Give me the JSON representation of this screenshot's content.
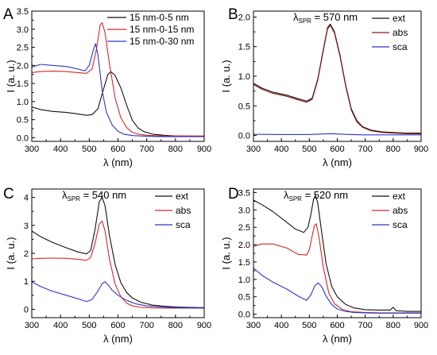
{
  "figure": {
    "panels": [
      "A",
      "B",
      "C",
      "D"
    ]
  },
  "colors": {
    "black": "#111111",
    "red": "#d62728",
    "blue": "#2e35c8",
    "darkred": "#8b1a1a"
  },
  "chart_data": [
    {
      "panel": "A",
      "type": "line",
      "title": "",
      "xlabel": "λ  (nm)",
      "ylabel": "I (a. u.)",
      "xlim": [
        300,
        900
      ],
      "ylim": [
        -0.1,
        3.5
      ],
      "xticks": [
        300,
        400,
        500,
        600,
        700,
        800,
        900
      ],
      "yticks": [
        0.0,
        0.5,
        1.0,
        1.5,
        2.0,
        2.5,
        3.0,
        3.5
      ],
      "ytick_labels": [
        "0.0",
        "0.5",
        "1.0",
        "1.5",
        "2.0",
        "2.5",
        "3.0",
        "3.5"
      ],
      "legend": "top-right",
      "annotation": "",
      "series": [
        {
          "name": "15 nm-0-5 nm",
          "color": "black",
          "x": [
            300,
            330,
            370,
            420,
            460,
            490,
            510,
            530,
            550,
            565,
            575,
            590,
            610,
            630,
            650,
            670,
            690,
            720,
            760,
            800,
            850,
            900
          ],
          "y": [
            0.85,
            0.78,
            0.73,
            0.7,
            0.66,
            0.62,
            0.64,
            0.8,
            1.35,
            1.75,
            1.83,
            1.72,
            1.38,
            0.9,
            0.48,
            0.27,
            0.17,
            0.1,
            0.07,
            0.05,
            0.04,
            0.04
          ]
        },
        {
          "name": "15 nm-0-15 nm",
          "color": "red",
          "x": [
            300,
            330,
            370,
            420,
            460,
            490,
            510,
            525,
            538,
            545,
            555,
            570,
            590,
            610,
            630,
            650,
            670,
            700,
            750,
            800,
            850,
            900
          ],
          "y": [
            1.8,
            1.83,
            1.84,
            1.83,
            1.8,
            1.78,
            1.9,
            2.45,
            3.12,
            3.18,
            2.9,
            2.05,
            1.1,
            0.55,
            0.28,
            0.15,
            0.1,
            0.07,
            0.05,
            0.05,
            0.05,
            0.05
          ]
        },
        {
          "name": "15 nm-0-30 nm",
          "color": "blue",
          "x": [
            300,
            330,
            370,
            420,
            460,
            485,
            500,
            515,
            522,
            530,
            545,
            560,
            580,
            600,
            620,
            650,
            700,
            750,
            800,
            850,
            900
          ],
          "y": [
            1.95,
            2.03,
            2.0,
            1.97,
            1.9,
            1.85,
            2.0,
            2.45,
            2.6,
            2.3,
            1.3,
            0.7,
            0.35,
            0.18,
            0.1,
            0.06,
            0.04,
            0.03,
            0.03,
            0.03,
            0.03
          ]
        }
      ]
    },
    {
      "panel": "B",
      "type": "line",
      "title": "",
      "xlabel": "λ  (nm)",
      "ylabel": "I (a. u.)",
      "xlim": [
        300,
        900
      ],
      "ylim": [
        -0.1,
        2.1
      ],
      "xticks": [
        300,
        400,
        500,
        600,
        700,
        800,
        900
      ],
      "yticks": [
        0.0,
        0.5,
        1.0,
        1.5,
        2.0
      ],
      "ytick_labels": [
        "0.0",
        "0.5",
        "1.0",
        "1.5",
        "2.0"
      ],
      "legend": "top-right",
      "annotation": {
        "symbol": "λ",
        "subscript": "SPR",
        "text": " = 570 nm"
      },
      "series": [
        {
          "name": "ext",
          "color": "black",
          "x": [
            300,
            330,
            370,
            420,
            460,
            490,
            510,
            530,
            550,
            565,
            575,
            590,
            610,
            630,
            650,
            670,
            690,
            720,
            760,
            800,
            850,
            900
          ],
          "y": [
            0.88,
            0.8,
            0.73,
            0.68,
            0.62,
            0.58,
            0.63,
            0.95,
            1.45,
            1.82,
            1.88,
            1.75,
            1.35,
            0.85,
            0.45,
            0.25,
            0.15,
            0.09,
            0.06,
            0.05,
            0.04,
            0.04
          ]
        },
        {
          "name": "abs",
          "color": "darkred",
          "x": [
            300,
            330,
            370,
            420,
            460,
            490,
            510,
            530,
            550,
            565,
            575,
            590,
            610,
            630,
            650,
            670,
            690,
            720,
            760,
            800,
            850,
            900
          ],
          "y": [
            0.86,
            0.78,
            0.71,
            0.66,
            0.6,
            0.56,
            0.61,
            0.93,
            1.43,
            1.8,
            1.86,
            1.73,
            1.33,
            0.83,
            0.43,
            0.23,
            0.14,
            0.08,
            0.05,
            0.04,
            0.03,
            0.03
          ]
        },
        {
          "name": "sca",
          "color": "blue",
          "x": [
            300,
            400,
            500,
            550,
            575,
            600,
            650,
            700,
            800,
            900
          ],
          "y": [
            0.02,
            0.015,
            0.015,
            0.025,
            0.03,
            0.025,
            0.015,
            0.01,
            0.01,
            0.01
          ]
        }
      ]
    },
    {
      "panel": "C",
      "type": "line",
      "title": "",
      "xlabel": "λ  (nm)",
      "ylabel": "I (a. u.)",
      "xlim": [
        300,
        900
      ],
      "ylim": [
        -0.3,
        4.3
      ],
      "xticks": [
        300,
        400,
        500,
        600,
        700,
        800,
        900
      ],
      "yticks": [
        0,
        1,
        2,
        3,
        4
      ],
      "ytick_labels": [
        "0",
        "1",
        "2",
        "3",
        "4"
      ],
      "legend": "top-right",
      "annotation": {
        "symbol": "λ",
        "subscript": "SPR",
        "text": " = 540 nm"
      },
      "series": [
        {
          "name": "ext",
          "color": "black",
          "x": [
            300,
            330,
            370,
            420,
            460,
            490,
            505,
            520,
            535,
            545,
            555,
            570,
            590,
            610,
            630,
            650,
            680,
            720,
            760,
            800,
            850,
            900
          ],
          "y": [
            2.8,
            2.6,
            2.4,
            2.2,
            2.05,
            1.98,
            2.1,
            2.85,
            3.85,
            4.0,
            3.7,
            2.65,
            1.6,
            0.95,
            0.6,
            0.4,
            0.25,
            0.15,
            0.11,
            0.08,
            0.07,
            0.06
          ]
        },
        {
          "name": "abs",
          "color": "red",
          "x": [
            300,
            330,
            370,
            420,
            460,
            490,
            505,
            520,
            535,
            545,
            555,
            570,
            590,
            610,
            630,
            650,
            680,
            720,
            760,
            800,
            850,
            900
          ],
          "y": [
            1.8,
            1.82,
            1.83,
            1.82,
            1.79,
            1.75,
            1.85,
            2.35,
            3.05,
            3.15,
            2.8,
            1.8,
            0.9,
            0.45,
            0.22,
            0.12,
            0.07,
            0.05,
            0.04,
            0.04,
            0.04,
            0.04
          ]
        },
        {
          "name": "sca",
          "color": "blue",
          "x": [
            300,
            330,
            370,
            420,
            460,
            490,
            510,
            530,
            545,
            555,
            565,
            580,
            600,
            630,
            660,
            700,
            750,
            800,
            850,
            900
          ],
          "y": [
            0.98,
            0.82,
            0.65,
            0.5,
            0.38,
            0.28,
            0.35,
            0.65,
            0.92,
            0.98,
            0.88,
            0.68,
            0.5,
            0.32,
            0.2,
            0.12,
            0.08,
            0.06,
            0.05,
            0.05
          ]
        }
      ]
    },
    {
      "panel": "D",
      "type": "line",
      "title": "",
      "xlabel": "λ  (nm)",
      "ylabel": "I (a. u.)",
      "xlim": [
        300,
        900
      ],
      "ylim": [
        -0.1,
        3.6
      ],
      "xticks": [
        300,
        400,
        500,
        600,
        700,
        800,
        900
      ],
      "yticks": [
        0.0,
        0.5,
        1.0,
        1.5,
        2.0,
        2.5,
        3.0,
        3.5
      ],
      "ytick_labels": [
        "0.0",
        "0.5",
        "1.0",
        "1.5",
        "2.0",
        "2.5",
        "3.0",
        "3.5"
      ],
      "legend": "top-right",
      "annotation": {
        "symbol": "λ",
        "subscript": "SPR",
        "text": " = 520 nm"
      },
      "series": [
        {
          "name": "ext",
          "color": "black",
          "x": [
            300,
            330,
            370,
            410,
            450,
            480,
            495,
            505,
            515,
            522,
            530,
            545,
            560,
            580,
            600,
            630,
            660,
            700,
            750,
            790,
            800,
            810,
            850,
            900
          ],
          "y": [
            3.28,
            3.15,
            2.95,
            2.7,
            2.45,
            2.35,
            2.5,
            2.85,
            3.3,
            3.42,
            3.2,
            2.3,
            1.45,
            0.8,
            0.5,
            0.28,
            0.18,
            0.13,
            0.12,
            0.12,
            0.2,
            0.1,
            0.08,
            0.08
          ]
        },
        {
          "name": "abs",
          "color": "red",
          "x": [
            300,
            330,
            370,
            420,
            460,
            490,
            500,
            510,
            518,
            525,
            535,
            550,
            570,
            590,
            620,
            650,
            700,
            750,
            800,
            850,
            900
          ],
          "y": [
            1.95,
            2.02,
            2.02,
            1.9,
            1.72,
            1.7,
            1.85,
            2.25,
            2.55,
            2.6,
            2.2,
            1.35,
            0.6,
            0.3,
            0.13,
            0.07,
            0.05,
            0.04,
            0.04,
            0.04,
            0.04
          ]
        },
        {
          "name": "sca",
          "color": "blue",
          "x": [
            300,
            330,
            370,
            420,
            460,
            490,
            505,
            520,
            532,
            545,
            560,
            580,
            600,
            630,
            660,
            700,
            750,
            800,
            850,
            900
          ],
          "y": [
            1.33,
            1.12,
            0.92,
            0.72,
            0.52,
            0.4,
            0.55,
            0.82,
            0.9,
            0.78,
            0.52,
            0.28,
            0.15,
            0.08,
            0.05,
            0.04,
            0.03,
            0.03,
            0.03,
            0.03
          ]
        }
      ]
    }
  ]
}
